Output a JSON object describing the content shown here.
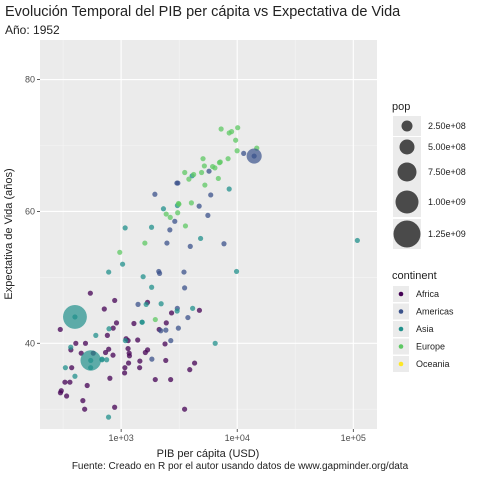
{
  "title": "Evolución Temporal del PIB per cápita vs Expectativa de Vida",
  "subtitle": "Año: 1952",
  "caption": "Fuente: Creado en R por el autor usando datos de www.gapminder.org/data",
  "colors": {
    "panel": "#ebebeb",
    "grid_major": "#ffffff",
    "grid_minor": "#f5f5f5",
    "Africa": "#440154",
    "Americas": "#3b528b",
    "Asia": "#21908c",
    "Europe": "#5dc863",
    "Oceania": "#fde725"
  },
  "chart_data": {
    "type": "scatter",
    "title": "Evolución Temporal del PIB per cápita vs Expectativa de Vida",
    "subtitle": "Año: 1952",
    "xlabel": "PIB per cápita (USD)",
    "ylabel": "Expectativa de Vida (años)",
    "x_scale": "log10",
    "xlim": [
      200,
      160000
    ],
    "ylim": [
      27,
      86
    ],
    "x_ticks": [
      {
        "value": 1000,
        "label": "1e+03"
      },
      {
        "value": 10000,
        "label": "1e+04"
      },
      {
        "value": 100000,
        "label": "1e+05"
      }
    ],
    "y_ticks": [
      {
        "value": 40,
        "label": "40"
      },
      {
        "value": 60,
        "label": "60"
      },
      {
        "value": 80,
        "label": "80"
      }
    ],
    "grid": true,
    "size_legend": {
      "title": "pop",
      "entries": [
        {
          "label": "2.50e+08",
          "value": 250000000
        },
        {
          "label": "5.00e+08",
          "value": 500000000
        },
        {
          "label": "7.50e+08",
          "value": 750000000
        },
        {
          "label": "1.00e+09",
          "value": 1000000000
        },
        {
          "label": "1.25e+09",
          "value": 1250000000
        }
      ]
    },
    "color_legend": {
      "title": "continent",
      "entries": [
        "Africa",
        "Americas",
        "Asia",
        "Europe",
        "Oceania"
      ]
    },
    "series": [
      {
        "name": "Africa",
        "points": [
          [
            2449,
            43.1
          ],
          [
            3521,
            30.0
          ],
          [
            851,
            38.2
          ],
          [
            543,
            47.6
          ],
          [
            339,
            32.0
          ],
          [
            369,
            39.0
          ],
          [
            1173,
            38.5
          ],
          [
            1071,
            35.5
          ],
          [
            1179,
            38.1
          ],
          [
            1103,
            40.7
          ],
          [
            781,
            39.1
          ],
          [
            2126,
            42.1
          ],
          [
            1389,
            40.5
          ],
          [
            2670,
            34.5
          ],
          [
            375,
            36.3
          ],
          [
            328,
            34.1
          ],
          [
            362,
            34.1
          ],
          [
            4293,
            37.0
          ],
          [
            485,
            30.0
          ],
          [
            912,
            43.1
          ],
          [
            510,
            33.6
          ],
          [
            300,
            32.5
          ],
          [
            854,
            42.3
          ],
          [
            299,
            42.1
          ],
          [
            575,
            38.5
          ],
          [
            2388,
            39.9
          ],
          [
            1159,
            37.0
          ],
          [
            1443,
            36.3
          ],
          [
            453,
            38.5
          ],
          [
            1690,
            39.0
          ],
          [
            1968,
            34.5
          ],
          [
            468,
            31.3
          ],
          [
            2423,
            37.4
          ],
          [
            761,
            41.2
          ],
          [
            1077,
            36.3
          ],
          [
            2718,
            44.6
          ],
          [
            493,
            40.0
          ],
          [
            880,
            46.5
          ],
          [
            1450,
            37.3
          ],
          [
            879,
            30.3
          ],
          [
            4725,
            45.0
          ],
          [
            1616,
            38.6
          ],
          [
            1148,
            40.4
          ],
          [
            716,
            45.2
          ],
          [
            734,
            38.6
          ],
          [
            1688,
            46.2
          ],
          [
            1289,
            43.0
          ],
          [
            407,
            40.0
          ],
          [
            1147,
            39.2
          ],
          [
            3900,
            36.0
          ],
          [
            305,
            32.8
          ],
          [
            800,
            34.7
          ]
        ]
      },
      {
        "name": "Americas",
        "points": [
          [
            5911,
            62.5
          ],
          [
            2677,
            40.4
          ],
          [
            2109,
            50.9
          ],
          [
            11367,
            68.8
          ],
          [
            3940,
            54.7
          ],
          [
            2144,
            50.6
          ],
          [
            2628,
            57.2
          ],
          [
            5587,
            59.4
          ],
          [
            1398,
            45.9
          ],
          [
            3522,
            48.4
          ],
          [
            3048,
            45.3
          ],
          [
            2428,
            42.0
          ],
          [
            1840,
            37.6
          ],
          [
            2195,
            41.9
          ],
          [
            2898,
            58.5
          ],
          [
            3478,
            50.8
          ],
          [
            3112,
            42.3
          ],
          [
            2480,
            55.2
          ],
          [
            1953,
            62.6
          ],
          [
            3759,
            43.9
          ],
          [
            3081,
            64.3
          ],
          [
            3023,
            64.3
          ],
          [
            13990,
            68.4
          ],
          [
            5717,
            66.1
          ],
          [
            7690,
            55.1
          ],
          [
            4700,
            60.8
          ]
        ]
      },
      {
        "name": "Asia",
        "points": [
          [
            779,
            28.8
          ],
          [
            9867,
            50.9
          ],
          [
            684,
            37.5
          ],
          [
            368,
            39.4
          ],
          [
            400,
            44.0
          ],
          [
            3054,
            60.9
          ],
          [
            547,
            37.4
          ],
          [
            750,
            37.5
          ],
          [
            3035,
            44.9
          ],
          [
            4130,
            45.3
          ],
          [
            4087,
            65.4
          ],
          [
            1517,
            43.2
          ],
          [
            1547,
            50.1
          ],
          [
            108382,
            55.6
          ],
          [
            4835,
            55.9
          ],
          [
            1831,
            48.5
          ],
          [
            786,
            42.2
          ],
          [
            331,
            36.3
          ],
          [
            546,
            36.3
          ],
          [
            684,
            37.6
          ],
          [
            8528,
            63.4
          ],
          [
            1089,
            40.4
          ],
          [
            1828,
            57.6
          ],
          [
            2315,
            60.4
          ],
          [
            1083,
            57.5
          ],
          [
            1643,
            45.9
          ],
          [
            605,
            41.2
          ],
          [
            1516,
            43.2
          ],
          [
            781,
            50.8
          ],
          [
            6460,
            40.0
          ],
          [
            2211,
            46.0
          ],
          [
            1029,
            52.0
          ],
          [
            400,
            35.0
          ]
        ]
      },
      {
        "name": "Europe",
        "points": [
          [
            1601,
            55.2
          ],
          [
            6137,
            66.8
          ],
          [
            8343,
            68.0
          ],
          [
            973,
            53.8
          ],
          [
            2444,
            59.6
          ],
          [
            3119,
            61.2
          ],
          [
            6877,
            65.0
          ],
          [
            9692,
            70.8
          ],
          [
            6425,
            66.6
          ],
          [
            7030,
            67.4
          ],
          [
            7144,
            67.5
          ],
          [
            3531,
            65.9
          ],
          [
            5264,
            64.0
          ],
          [
            7267,
            72.5
          ],
          [
            5211,
            66.9
          ],
          [
            4931,
            65.9
          ],
          [
            2648,
            59.1
          ],
          [
            8942,
            72.1
          ],
          [
            10095,
            72.7
          ],
          [
            4030,
            61.3
          ],
          [
            3069,
            59.8
          ],
          [
            3145,
            61.1
          ],
          [
            3581,
            57.8
          ],
          [
            5075,
            68.0
          ],
          [
            4215,
            65.6
          ],
          [
            3834,
            64.9
          ],
          [
            8528,
            71.9
          ],
          [
            14734,
            69.6
          ],
          [
            1970,
            43.6
          ],
          [
            9979,
            69.2
          ]
        ]
      },
      {
        "name": "Oceania",
        "points": []
      }
    ],
    "large_points": [
      {
        "continent": "Asia",
        "x": 400,
        "y": 44.0,
        "pop": 556263527
      },
      {
        "continent": "Asia",
        "x": 547,
        "y": 37.4,
        "pop": 372000000
      },
      {
        "continent": "Americas",
        "x": 13990,
        "y": 68.4,
        "pop": 157553000
      }
    ]
  }
}
